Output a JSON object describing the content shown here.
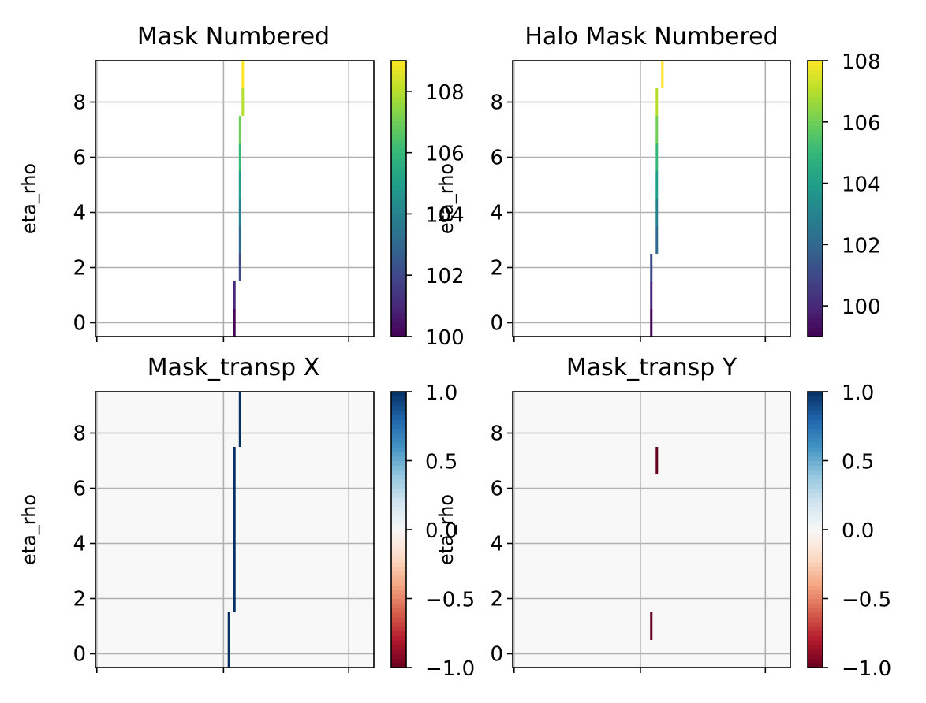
{
  "chart_data": [
    {
      "type": "heatmap",
      "title": "Mask Numbered",
      "ylabel": "eta_rho",
      "xlabel": "",
      "ylim": [
        -0.5,
        9.5
      ],
      "yticks": [
        0,
        2,
        4,
        6,
        8
      ],
      "grid": true,
      "colormap": "viridis",
      "clim": [
        100,
        109
      ],
      "colorbar_ticks": [
        100,
        102,
        104,
        106,
        108
      ],
      "colorbar_tick_labels": [
        "100",
        "102",
        "104",
        "106",
        "108"
      ],
      "x_ticks_visible": 3,
      "cells": [
        {
          "eta": 0,
          "xi": 0.04,
          "value": 100
        },
        {
          "eta": 1,
          "xi": 0.04,
          "value": 101
        },
        {
          "eta": 2,
          "xi": 0.06,
          "value": 102
        },
        {
          "eta": 3,
          "xi": 0.06,
          "value": 103
        },
        {
          "eta": 4,
          "xi": 0.06,
          "value": 104
        },
        {
          "eta": 5,
          "xi": 0.06,
          "value": 105
        },
        {
          "eta": 6,
          "xi": 0.06,
          "value": 106
        },
        {
          "eta": 7,
          "xi": 0.06,
          "value": 107
        },
        {
          "eta": 8,
          "xi": 0.07,
          "value": 108
        },
        {
          "eta": 9,
          "xi": 0.07,
          "value": 109
        }
      ]
    },
    {
      "type": "heatmap",
      "title": "Halo Mask Numbered",
      "ylabel": "eta_rho",
      "xlabel": "",
      "ylim": [
        -0.5,
        9.5
      ],
      "yticks": [
        0,
        2,
        4,
        6,
        8
      ],
      "grid": true,
      "colormap": "viridis",
      "clim": [
        99,
        108
      ],
      "colorbar_ticks": [
        100,
        102,
        104,
        106,
        108
      ],
      "colorbar_tick_labels": [
        "100",
        "102",
        "104",
        "106",
        "108"
      ],
      "x_ticks_visible": 3,
      "cells": [
        {
          "eta": 0,
          "xi": 0.04,
          "value": 99
        },
        {
          "eta": 1,
          "xi": 0.04,
          "value": 100
        },
        {
          "eta": 2,
          "xi": 0.04,
          "value": 101
        },
        {
          "eta": 3,
          "xi": 0.06,
          "value": 102
        },
        {
          "eta": 4,
          "xi": 0.06,
          "value": 103
        },
        {
          "eta": 5,
          "xi": 0.06,
          "value": 104
        },
        {
          "eta": 6,
          "xi": 0.06,
          "value": 105
        },
        {
          "eta": 7,
          "xi": 0.06,
          "value": 106
        },
        {
          "eta": 8,
          "xi": 0.06,
          "value": 107
        },
        {
          "eta": 9,
          "xi": 0.08,
          "value": 108
        }
      ]
    },
    {
      "type": "heatmap",
      "title": "Mask_transp X",
      "ylabel": "eta_rho",
      "xlabel": "",
      "ylim": [
        -0.5,
        9.5
      ],
      "yticks": [
        0,
        2,
        4,
        6,
        8
      ],
      "grid": true,
      "colormap": "RdBu",
      "clim": [
        -1,
        1
      ],
      "colorbar_ticks": [
        -1,
        -0.5,
        0,
        0.5,
        1
      ],
      "colorbar_tick_labels": [
        "−1.0",
        "−0.5",
        "0.0",
        "0.5",
        "1.0"
      ],
      "x_ticks_visible": 3,
      "background_value": 0,
      "cells": [
        {
          "eta": 0,
          "xi": 0.02,
          "value": 1
        },
        {
          "eta": 1,
          "xi": 0.02,
          "value": 1
        },
        {
          "eta": 2,
          "xi": 0.04,
          "value": 1
        },
        {
          "eta": 3,
          "xi": 0.04,
          "value": 1
        },
        {
          "eta": 4,
          "xi": 0.04,
          "value": 1
        },
        {
          "eta": 5,
          "xi": 0.04,
          "value": 1
        },
        {
          "eta": 6,
          "xi": 0.04,
          "value": 1
        },
        {
          "eta": 7,
          "xi": 0.04,
          "value": 1
        },
        {
          "eta": 8,
          "xi": 0.06,
          "value": 1
        },
        {
          "eta": 9,
          "xi": 0.06,
          "value": 1
        }
      ]
    },
    {
      "type": "heatmap",
      "title": "Mask_transp Y",
      "ylabel": "eta_rho",
      "xlabel": "",
      "ylim": [
        -0.5,
        9.5
      ],
      "yticks": [
        0,
        2,
        4,
        6,
        8
      ],
      "grid": true,
      "colormap": "RdBu",
      "clim": [
        -1,
        1
      ],
      "colorbar_ticks": [
        -1,
        -0.5,
        0,
        0.5,
        1
      ],
      "colorbar_tick_labels": [
        "−1.0",
        "−0.5",
        "0.0",
        "0.5",
        "1.0"
      ],
      "x_ticks_visible": 3,
      "background_value": 0,
      "cells": [
        {
          "eta": 1,
          "xi": 0.04,
          "value": -1
        },
        {
          "eta": 7,
          "xi": 0.06,
          "value": -1
        }
      ]
    }
  ]
}
